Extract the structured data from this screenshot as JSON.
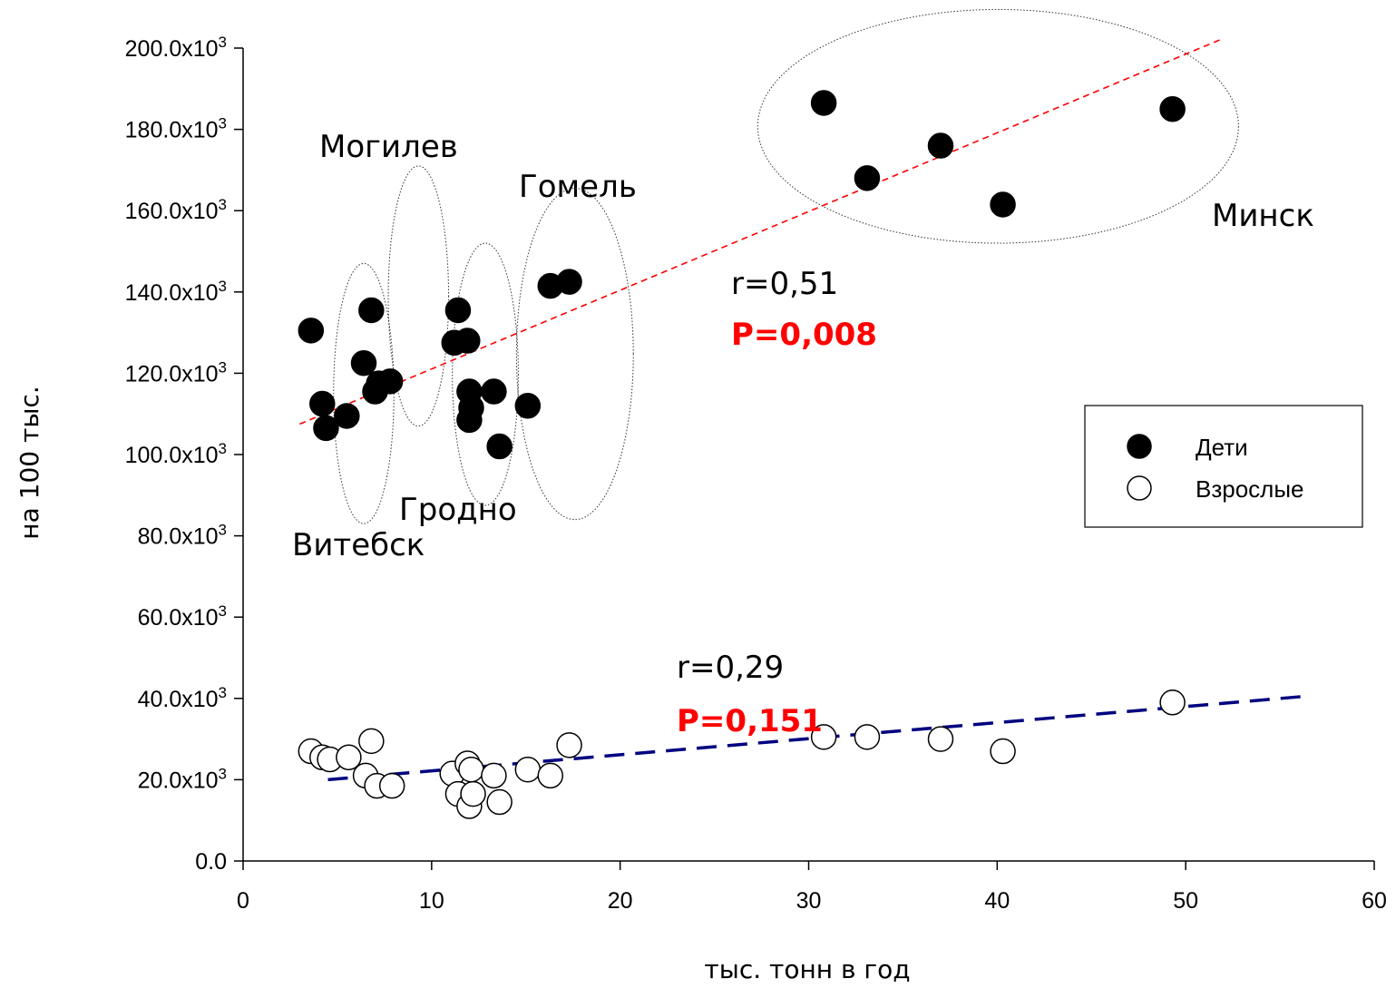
{
  "chart_data": {
    "type": "scatter",
    "xlabel": "тыс. тонн в год",
    "ylabel": "на 100 тыс.",
    "xlim": [
      0,
      60
    ],
    "ylim": [
      0,
      200000
    ],
    "x_ticks": [
      0,
      10,
      20,
      30,
      40,
      50,
      60
    ],
    "x_tick_labels": [
      "0",
      "10",
      "20",
      "30",
      "40",
      "50",
      "60"
    ],
    "y_ticks": [
      0,
      20000,
      40000,
      60000,
      80000,
      100000,
      120000,
      140000,
      160000,
      180000,
      200000
    ],
    "y_tick_labels": [
      "0.0",
      "20.0x10",
      "40.0x10",
      "60.0x10",
      "80.0x10",
      "100.0x10",
      "120.0x10",
      "140.0x10",
      "160.0x10",
      "180.0x10",
      "200.0x10"
    ],
    "y_tick_superscript": "3",
    "grid": false,
    "legend_position": "right",
    "series": [
      {
        "name": "Дети",
        "marker": "filled-circle",
        "color": "#000000",
        "points": [
          [
            3.6,
            130500
          ],
          [
            4.2,
            112500
          ],
          [
            4.4,
            106500
          ],
          [
            5.5,
            109500
          ],
          [
            6.4,
            122500
          ],
          [
            6.8,
            135500
          ],
          [
            7.0,
            115500
          ],
          [
            7.2,
            117500
          ],
          [
            7.8,
            118000
          ],
          [
            11.2,
            127500
          ],
          [
            11.4,
            135500
          ],
          [
            11.9,
            128000
          ],
          [
            12.0,
            115500
          ],
          [
            12.1,
            111500
          ],
          [
            12.0,
            108500
          ],
          [
            13.3,
            115500
          ],
          [
            13.6,
            102000
          ],
          [
            15.1,
            112000
          ],
          [
            16.3,
            141500
          ],
          [
            17.3,
            142500
          ],
          [
            30.8,
            186500
          ],
          [
            33.1,
            168000
          ],
          [
            37.0,
            176000
          ],
          [
            40.3,
            161500
          ],
          [
            49.3,
            185000
          ]
        ]
      },
      {
        "name": "Взрослые",
        "marker": "open-circle",
        "color": "#000000",
        "points": [
          [
            3.6,
            27000
          ],
          [
            4.2,
            25500
          ],
          [
            4.6,
            25000
          ],
          [
            5.6,
            25500
          ],
          [
            6.5,
            21000
          ],
          [
            6.8,
            29500
          ],
          [
            7.1,
            18500
          ],
          [
            7.9,
            18500
          ],
          [
            11.1,
            21500
          ],
          [
            11.4,
            16500
          ],
          [
            11.9,
            24000
          ],
          [
            12.0,
            13500
          ],
          [
            12.2,
            16500
          ],
          [
            12.1,
            22500
          ],
          [
            13.3,
            21000
          ],
          [
            13.6,
            14500
          ],
          [
            15.1,
            22500
          ],
          [
            16.3,
            21000
          ],
          [
            17.3,
            28500
          ],
          [
            30.8,
            30500
          ],
          [
            33.1,
            30500
          ],
          [
            37.0,
            30000
          ],
          [
            40.3,
            27000
          ],
          [
            49.3,
            39000
          ]
        ]
      }
    ],
    "trend_lines": [
      {
        "series": "Дети",
        "style": "dashed",
        "color": "#ff0000",
        "from": [
          3.0,
          107500
        ],
        "to": [
          51.8,
          202000
        ]
      },
      {
        "series": "Взрослые",
        "style": "long-dashed",
        "color": "#000080",
        "from": [
          4.5,
          20000
        ],
        "to": [
          56.3,
          40500
        ]
      }
    ],
    "region_groups": [
      {
        "label": "Витебск",
        "x_range": [
          4.8,
          8.0
        ],
        "y_range": [
          83000,
          147000
        ]
      },
      {
        "label": "Могилев",
        "x_range": [
          7.7,
          10.9
        ],
        "y_range": [
          107000,
          171000
        ]
      },
      {
        "label": "Гродно",
        "x_range": [
          11.1,
          14.6
        ],
        "y_range": [
          87500,
          152000
        ]
      },
      {
        "label": "Гомель",
        "x_range": [
          14.5,
          20.7
        ],
        "y_range": [
          84000,
          165500
        ]
      },
      {
        "label": "Минск",
        "x_range": [
          27.3,
          52.8
        ],
        "y_range": [
          152000,
          209500
        ]
      }
    ],
    "annotations": [
      {
        "r": "r=0,51",
        "p": "P=0,008",
        "series": "Дети"
      },
      {
        "r": "r=0,29",
        "p": "P=0,151",
        "series": "Взрослые"
      }
    ],
    "colors": {
      "trend_children": "#ff0000",
      "trend_adults": "#000080",
      "p_value": "#ff0000"
    }
  }
}
